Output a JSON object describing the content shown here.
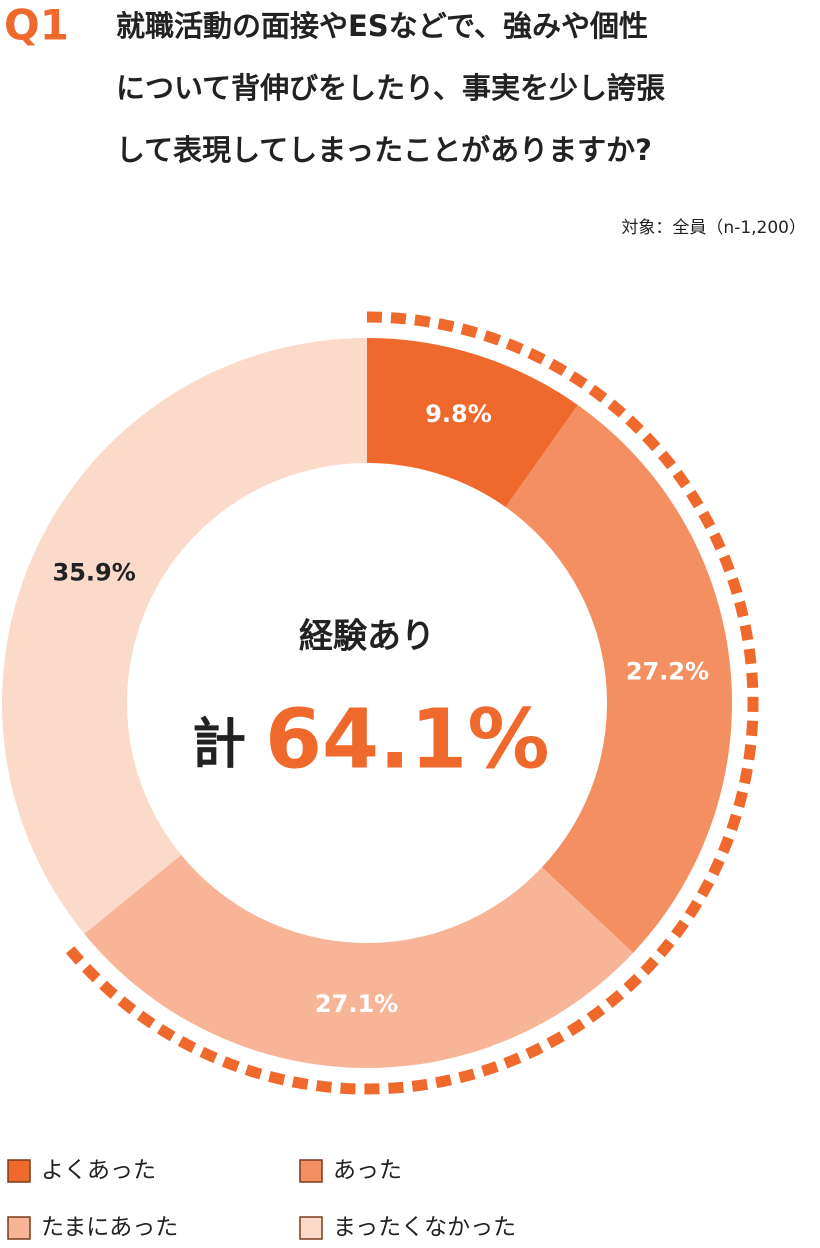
{
  "chart_data": {
    "type": "pie",
    "badge": "Q1",
    "title_lines": [
      "就職活動の面接やESなどで、強みや個性",
      "について背伸びをしたり、事実を少し誇張",
      "して表現してしまったことがありますか?"
    ],
    "note": "対象：全員（n-1,200）",
    "categories": [
      "よくあった",
      "あった",
      "たまにあった",
      "まったくなかった"
    ],
    "values": [
      9.8,
      27.2,
      27.1,
      35.9
    ],
    "value_labels": [
      "9.8%",
      "27.2%",
      "27.1%",
      "35.9%"
    ],
    "colors": [
      "#f0692c",
      "#f48f62",
      "#f7b497",
      "#fcdaca"
    ],
    "center_label": "経験あり",
    "total_prefix": "計",
    "total_label": "64.1%"
  }
}
